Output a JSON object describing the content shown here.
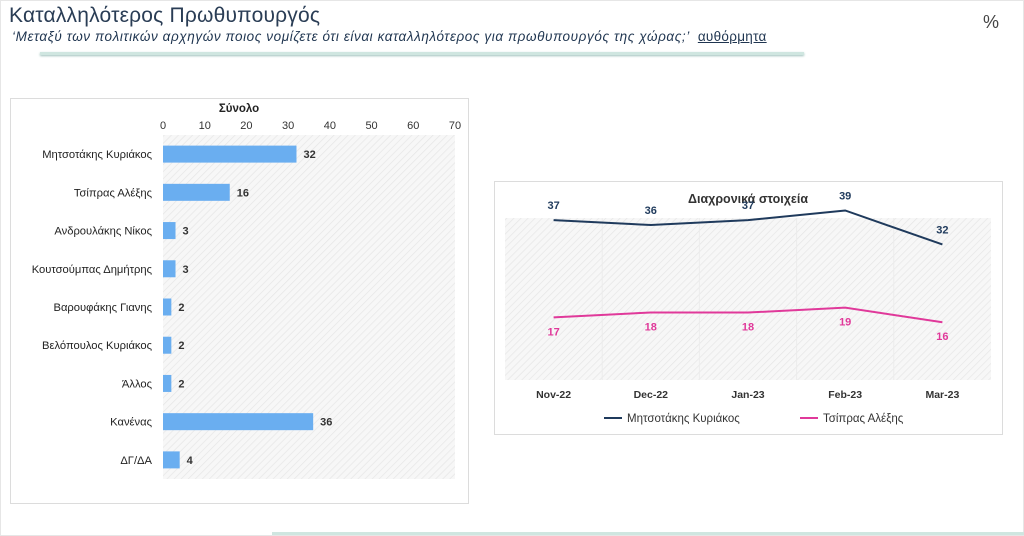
{
  "header": {
    "title": "Καταλληλότερος Πρωθυπουργός",
    "subtitle": "‘Μεταξύ των πολιτικών αρχηγών ποιος νομίζετε ότι είναι καταλληλότερος για πρωθυπουργός της χώρας;’",
    "subtitle_tag": "αυθόρμητα",
    "unit": "%"
  },
  "chart_data": [
    {
      "type": "bar",
      "orientation": "horizontal",
      "title": "Σύνολο",
      "categories": [
        "Μητσοτάκης Κυριάκος",
        "Τσίπρας Αλέξης",
        "Ανδρουλάκης Νίκος",
        "Κουτσούμπας Δημήτρης",
        "Βαρουφάκης Γιανης",
        "Βελόπουλος Κυριάκος",
        "Άλλος",
        "Κανένας",
        "ΔΓ/ΔΑ"
      ],
      "values": [
        32,
        16,
        3,
        3,
        2,
        2,
        2,
        36,
        4
      ],
      "xlim": [
        0,
        70
      ],
      "xticks": [
        "0",
        "10",
        "20",
        "30",
        "40",
        "50",
        "60",
        "70"
      ],
      "bar_color": "#6aaef0",
      "grid": false
    },
    {
      "type": "line",
      "title": "Διαχρονικά στοιχεία",
      "categories": [
        "Nov-22",
        "Dec-22",
        "Jan-23",
        "Feb-23",
        "Mar-23"
      ],
      "series": [
        {
          "name": "Μητσοτάκης Κυριάκος",
          "values": [
            37,
            36,
            37,
            39,
            32
          ],
          "color": "#1f3a5c"
        },
        {
          "name": "Τσίπρας Αλέξης",
          "values": [
            17,
            18,
            18,
            19,
            16
          ],
          "color": "#e0399a"
        }
      ],
      "legend": "bottom"
    }
  ]
}
